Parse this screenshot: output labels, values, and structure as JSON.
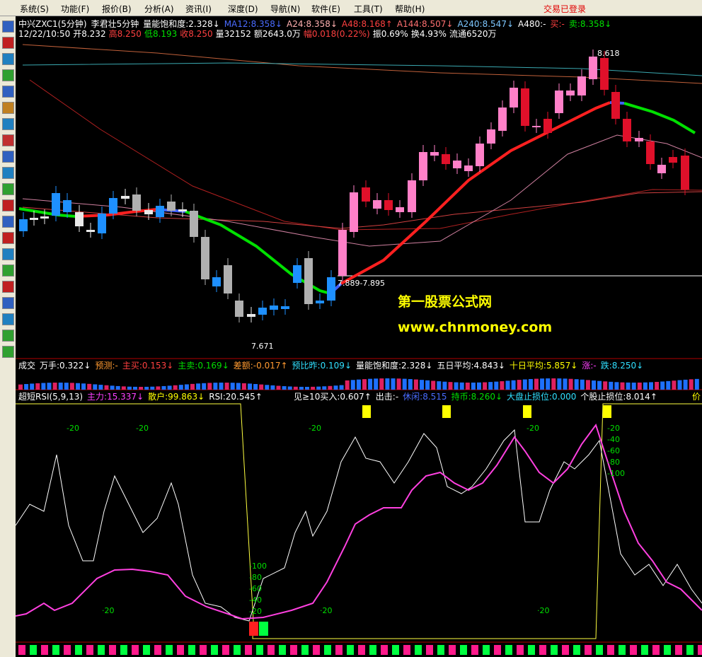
{
  "menu": {
    "items": [
      "系统(S)",
      "功能(F)",
      "报价(B)",
      "分析(A)",
      "资讯(I)",
      "深度(D)",
      "导航(N)",
      "软件(E)",
      "工具(T)",
      "帮助(H)"
    ],
    "status": "交易已登录"
  },
  "price_panel": {
    "header": [
      "中兴ZXC1(5分钟)",
      "李君壮5分钟",
      "量能饱和度:2.328↓",
      "MA12:8.358↓",
      "A24:8.358↓",
      "A48:8.168↑",
      "A144:8.507↓",
      "A240:8.547↓",
      "A480:-",
      "买:-",
      "卖:8.358↓"
    ],
    "quote": [
      "12/22/10:50",
      "开8.232",
      "高8.250",
      "低8.193",
      "收8.250",
      "量32152",
      "额2643.0万",
      "幅0.018(0.22%)",
      "振0.69%",
      "换4.93%",
      "流通6520万"
    ],
    "annotations": {
      "high": "8.618",
      "range": "7.889-7.895",
      "low": "7.671"
    },
    "watermark": {
      "name": "第一股票公式网",
      "url": "www.chnmoney.com"
    }
  },
  "volume_panel": {
    "header": [
      "成交",
      "万手:0.322↓",
      "预测:-",
      "主买:0.153↓",
      "主卖:0.169↓",
      "差额:-0.017↑",
      "预比昨:0.109↓",
      "量能饱和度:2.328↓",
      "五日平均:4.843↓",
      "十日平均:5.857↓",
      "涨:-",
      "跌:8.250↓"
    ]
  },
  "rsi_panel": {
    "header_left": [
      "超短RSI(5,9,13)",
      "主力:15.337↓",
      "散户:99.863↓",
      "RSI:20.545↑"
    ],
    "header_right": [
      "见≥10买入:0.607↑",
      "出击:-",
      "休闲:8.515",
      "持币:8.260↓",
      "大盘止损位:0.000",
      "个股止损位:8.014↑",
      "价"
    ],
    "top_labels": [
      "-20",
      "-20",
      "-20",
      "-20"
    ],
    "bottom_labels": [
      "·20",
      "·20",
      "·20"
    ],
    "scale_a": [
      "-100",
      "-80",
      "-60",
      "-40",
      "-20"
    ],
    "scale_b": [
      "-20",
      "-40",
      "-60",
      "-80",
      "-100"
    ]
  }
}
